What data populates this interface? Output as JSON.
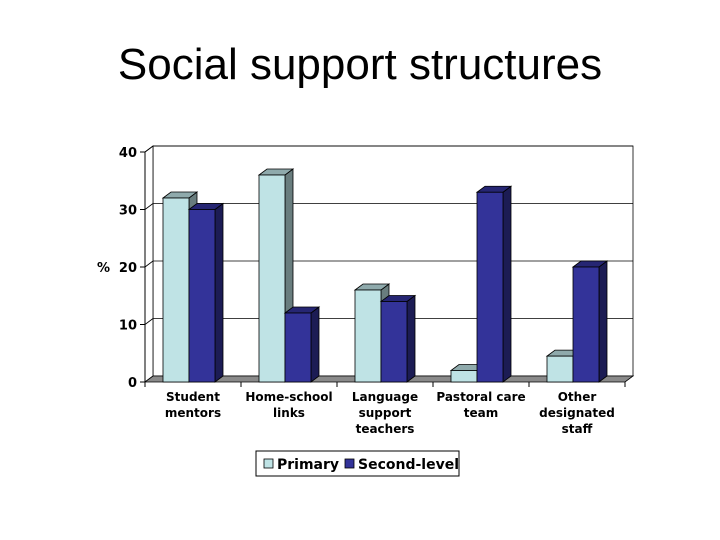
{
  "slide": {
    "title": "Social support structures"
  },
  "colors": {
    "primary": "#bfe3e5",
    "second_level": "#333399",
    "floor": "#8a8a8a",
    "wall": "#ffffff",
    "axis": "#000000"
  },
  "chart_data": {
    "type": "bar",
    "title": "",
    "xlabel": "",
    "ylabel": "%",
    "ylim": [
      0,
      40
    ],
    "yticks": [
      0,
      10,
      20,
      30,
      40
    ],
    "grid": true,
    "legend_position": "bottom",
    "categories": [
      [
        "Student",
        "mentors"
      ],
      [
        "Home-school",
        "links"
      ],
      [
        "Language",
        "support",
        "teachers"
      ],
      [
        "Pastoral care",
        "team"
      ],
      [
        "Other",
        "designated",
        "staff"
      ]
    ],
    "series": [
      {
        "name": "Primary",
        "values": [
          32,
          36,
          16,
          2,
          4.5
        ]
      },
      {
        "name": "Second-level",
        "values": [
          30,
          12,
          14,
          33,
          20
        ]
      }
    ]
  }
}
